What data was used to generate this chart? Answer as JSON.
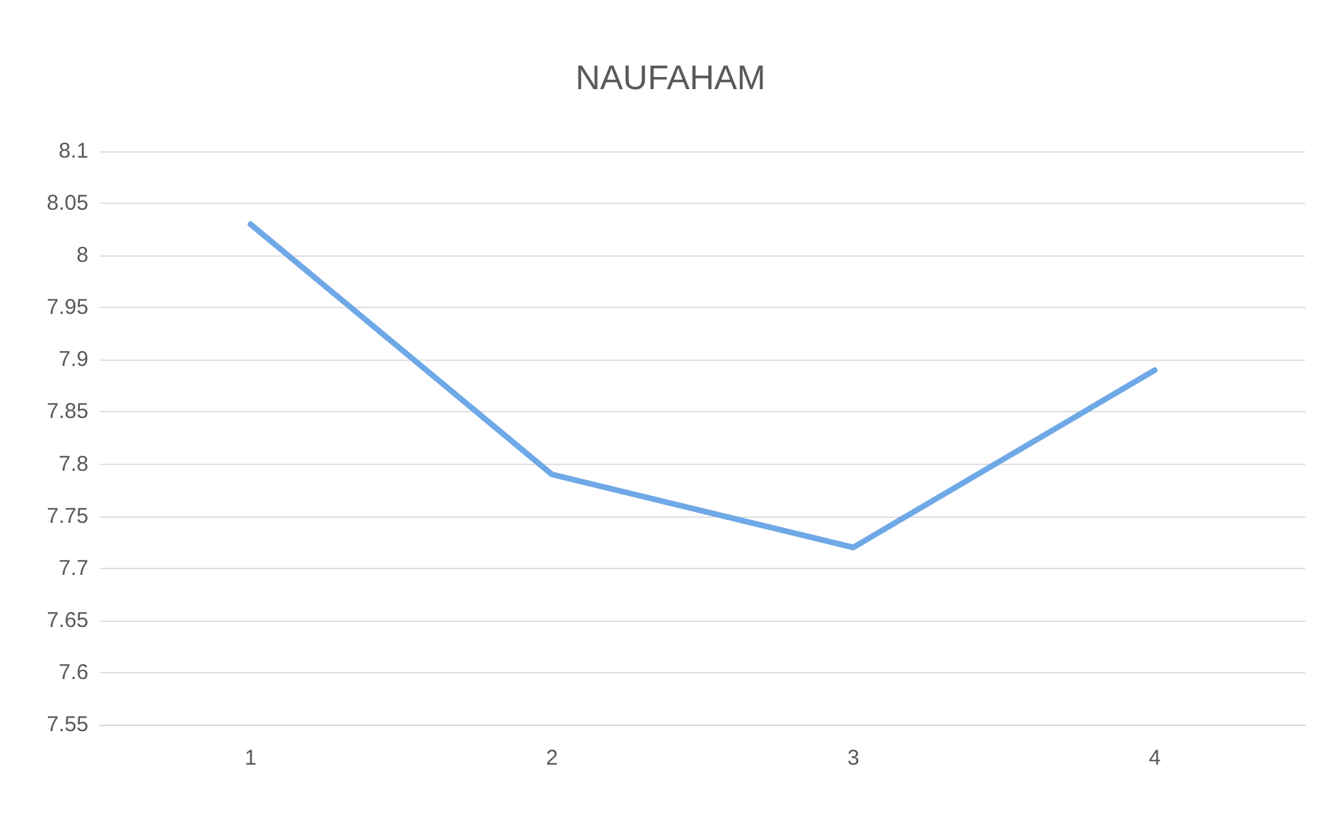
{
  "chart_data": {
    "type": "line",
    "title": "NAUFAHAM",
    "categories": [
      "1",
      "2",
      "3",
      "4"
    ],
    "series": [
      {
        "color": "#6fa8e6",
        "values": [
          8.03,
          7.79,
          7.72,
          7.89
        ]
      }
    ],
    "ylim": [
      7.55,
      8.1
    ],
    "yticks": [
      7.55,
      7.6,
      7.65,
      7.7,
      7.75,
      7.8,
      7.85,
      7.9,
      7.95,
      8,
      8.05,
      8.1
    ],
    "grid": "y",
    "marker": "none",
    "line_style": "solid"
  }
}
